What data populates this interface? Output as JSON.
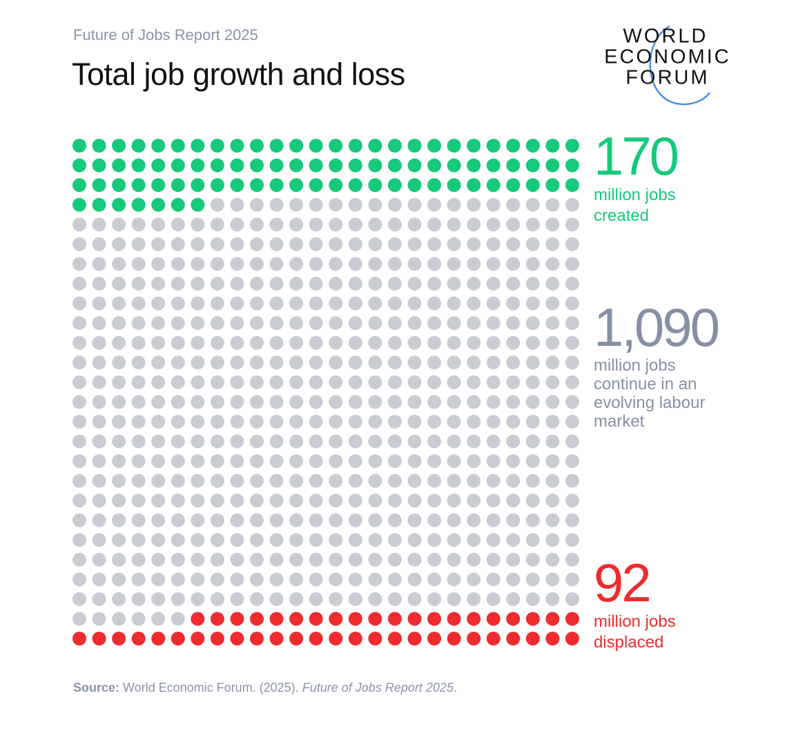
{
  "header": {
    "subtitle": "Future of Jobs Report 2025",
    "title": "Total job growth and loss",
    "logo": [
      "WORLD",
      "ECONOMIC",
      "FORUM"
    ]
  },
  "chart_data": {
    "type": "waffle",
    "categories": [
      "million jobs created",
      "million jobs continue in an evolving labour market",
      "million jobs displaced"
    ],
    "values": [
      170,
      1090,
      92
    ],
    "value_labels": [
      "170",
      "1,090",
      "92"
    ],
    "colors": [
      "#17c97b",
      "#c9cdd3",
      "#ee2b2e"
    ],
    "label_colors": [
      "#17c97b",
      "#8590a4",
      "#ee2b2e"
    ]
  },
  "source": {
    "label": "Source:",
    "text": "World Economic Forum. (2025).",
    "title": "Future of Jobs Report 2025",
    "end": "."
  }
}
